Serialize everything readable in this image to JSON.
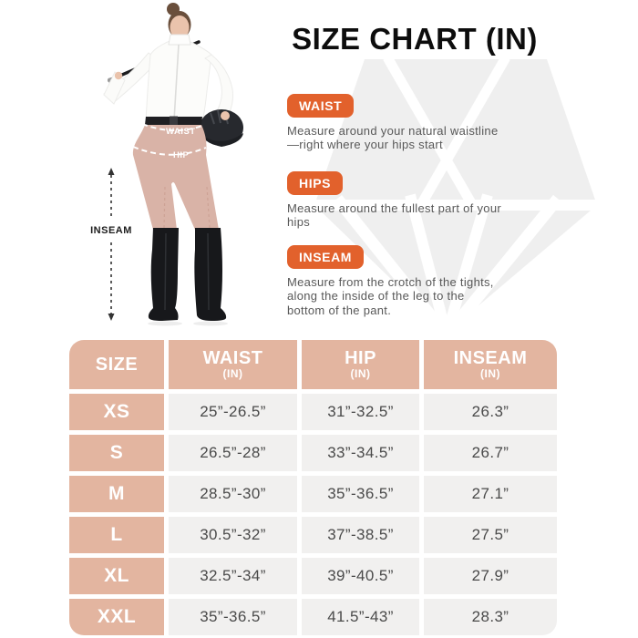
{
  "title": "SIZE CHART (IN)",
  "guides": [
    {
      "label": "WAIST",
      "description": "Measure around your natural waistline\n—right where your hips start"
    },
    {
      "label": "HIPS",
      "description": "Measure around the fullest part of your\nhips"
    },
    {
      "label": "INSEAM",
      "description": "Measure from the crotch of the tights,\nalong the inside of the leg to the\nbottom of the pant."
    }
  ],
  "figure": {
    "waist_label": "WAIST",
    "hip_label": "HIP",
    "inseam_label": "INSEAM"
  },
  "table": {
    "header": [
      {
        "main": "SIZE",
        "sub": ""
      },
      {
        "main": "WAIST",
        "sub": "(IN)"
      },
      {
        "main": "HIP",
        "sub": "(IN)"
      },
      {
        "main": "INSEAM",
        "sub": "(IN)"
      }
    ]
  },
  "chart_data": {
    "type": "table",
    "title": "SIZE CHART (IN)",
    "columns": [
      "SIZE",
      "WAIST (IN)",
      "HIP (IN)",
      "INSEAM (IN)"
    ],
    "rows": [
      [
        "XS",
        "25”-26.5”",
        "31”-32.5”",
        "26.3”"
      ],
      [
        "S",
        "26.5”-28”",
        "33”-34.5”",
        "26.7”"
      ],
      [
        "M",
        "28.5”-30”",
        "35”-36.5”",
        "27.1”"
      ],
      [
        "L",
        "30.5”-32”",
        "37”-38.5”",
        "27.5”"
      ],
      [
        "XL",
        "32.5”-34”",
        "39”-40.5”",
        "27.9”"
      ],
      [
        "XXL",
        "35”-36.5”",
        "41.5”-43”",
        "28.3”"
      ]
    ]
  },
  "colors": {
    "accent_orange": "#e2612c",
    "table_header_tan": "#e3b5a0",
    "table_cell_gray": "#f1f0ef",
    "tights_tan": "#d9b3a7",
    "boot_black": "#17181b",
    "watermark_gray": "#efefef",
    "title_black": "#0d0d0d",
    "body_text_gray": "#585858",
    "cell_text_gray": "#4a4a4a"
  }
}
